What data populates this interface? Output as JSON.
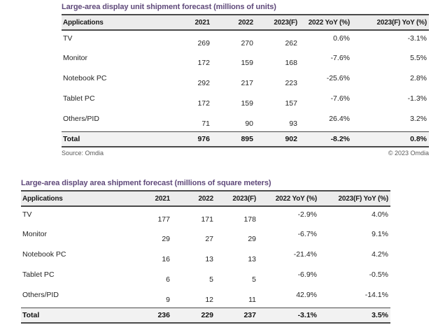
{
  "colors": {
    "title_purple": "#5f497a",
    "header_bg": "#ececec",
    "total_bg": "#f2f2f2",
    "border": "#4a4a4a"
  },
  "tables": [
    {
      "title": "Large-area display unit shipment forecast (millions of units)",
      "headers": [
        "Applications",
        "2021",
        "2022",
        "2023(F)",
        "2022 YoY (%)",
        "2023(F) YoY (%)"
      ],
      "rows": [
        {
          "app": "TV",
          "v2021": "269",
          "v2022": "270",
          "v2023": "262",
          "yoy2022": "0.6%",
          "yoy2023": "-3.1%"
        },
        {
          "app": "Monitor",
          "v2021": "172",
          "v2022": "159",
          "v2023": "168",
          "yoy2022": "-7.6%",
          "yoy2023": "5.5%"
        },
        {
          "app": "Notebook PC",
          "v2021": "292",
          "v2022": "217",
          "v2023": "223",
          "yoy2022": "-25.6%",
          "yoy2023": "2.8%"
        },
        {
          "app": "Tablet PC",
          "v2021": "172",
          "v2022": "159",
          "v2023": "157",
          "yoy2022": "-7.6%",
          "yoy2023": "-1.3%"
        },
        {
          "app": "Others/PID",
          "v2021": "71",
          "v2022": "90",
          "v2023": "93",
          "yoy2022": "26.4%",
          "yoy2023": "3.2%"
        }
      ],
      "total": {
        "app": "Total",
        "v2021": "976",
        "v2022": "895",
        "v2023": "902",
        "yoy2022": "-8.2%",
        "yoy2023": "0.8%"
      },
      "source_left": "Source: Omdia",
      "source_right": "© 2023 Omdia"
    },
    {
      "title": "Large-area display area shipment forecast (millions of square meters)",
      "headers": [
        "Applications",
        "2021",
        "2022",
        "2023(F)",
        "2022 YoY (%)",
        "2023(F) YoY (%)"
      ],
      "rows": [
        {
          "app": "TV",
          "v2021": "177",
          "v2022": "171",
          "v2023": "178",
          "yoy2022": "-2.9%",
          "yoy2023": "4.0%"
        },
        {
          "app": "Monitor",
          "v2021": "29",
          "v2022": "27",
          "v2023": "29",
          "yoy2022": "-6.7%",
          "yoy2023": "9.1%"
        },
        {
          "app": "Notebook PC",
          "v2021": "16",
          "v2022": "13",
          "v2023": "13",
          "yoy2022": "-21.4%",
          "yoy2023": "4.2%"
        },
        {
          "app": "Tablet PC",
          "v2021": "6",
          "v2022": "5",
          "v2023": "5",
          "yoy2022": "-6.9%",
          "yoy2023": "-0.5%"
        },
        {
          "app": "Others/PID",
          "v2021": "9",
          "v2022": "12",
          "v2023": "11",
          "yoy2022": "42.9%",
          "yoy2023": "-14.1%"
        }
      ],
      "total": {
        "app": "Total",
        "v2021": "236",
        "v2022": "229",
        "v2023": "237",
        "yoy2022": "-3.1%",
        "yoy2023": "3.5%"
      }
    }
  ],
  "chart_data": [
    {
      "type": "table",
      "title": "Large-area display unit shipment forecast (millions of units)",
      "columns": [
        "Applications",
        "2021",
        "2022",
        "2023(F)",
        "2022 YoY (%)",
        "2023(F) YoY (%)"
      ],
      "rows": [
        [
          "TV",
          269,
          270,
          262,
          "0.6%",
          "-3.1%"
        ],
        [
          "Monitor",
          172,
          159,
          168,
          "-7.6%",
          "5.5%"
        ],
        [
          "Notebook PC",
          292,
          217,
          223,
          "-25.6%",
          "2.8%"
        ],
        [
          "Tablet PC",
          172,
          159,
          157,
          "-7.6%",
          "-1.3%"
        ],
        [
          "Others/PID",
          71,
          90,
          93,
          "26.4%",
          "3.2%"
        ],
        [
          "Total",
          976,
          895,
          902,
          "-8.2%",
          "0.8%"
        ]
      ],
      "source": "Source: Omdia",
      "copyright": "© 2023 Omdia"
    },
    {
      "type": "table",
      "title": "Large-area display area shipment forecast (millions of square meters)",
      "columns": [
        "Applications",
        "2021",
        "2022",
        "2023(F)",
        "2022 YoY (%)",
        "2023(F) YoY (%)"
      ],
      "rows": [
        [
          "TV",
          177,
          171,
          178,
          "-2.9%",
          "4.0%"
        ],
        [
          "Monitor",
          29,
          27,
          29,
          "-6.7%",
          "9.1%"
        ],
        [
          "Notebook PC",
          16,
          13,
          13,
          "-21.4%",
          "4.2%"
        ],
        [
          "Tablet PC",
          6,
          5,
          5,
          "-6.9%",
          "-0.5%"
        ],
        [
          "Others/PID",
          9,
          12,
          11,
          "42.9%",
          "-14.1%"
        ],
        [
          "Total",
          236,
          229,
          237,
          "-3.1%",
          "3.5%"
        ]
      ]
    }
  ]
}
